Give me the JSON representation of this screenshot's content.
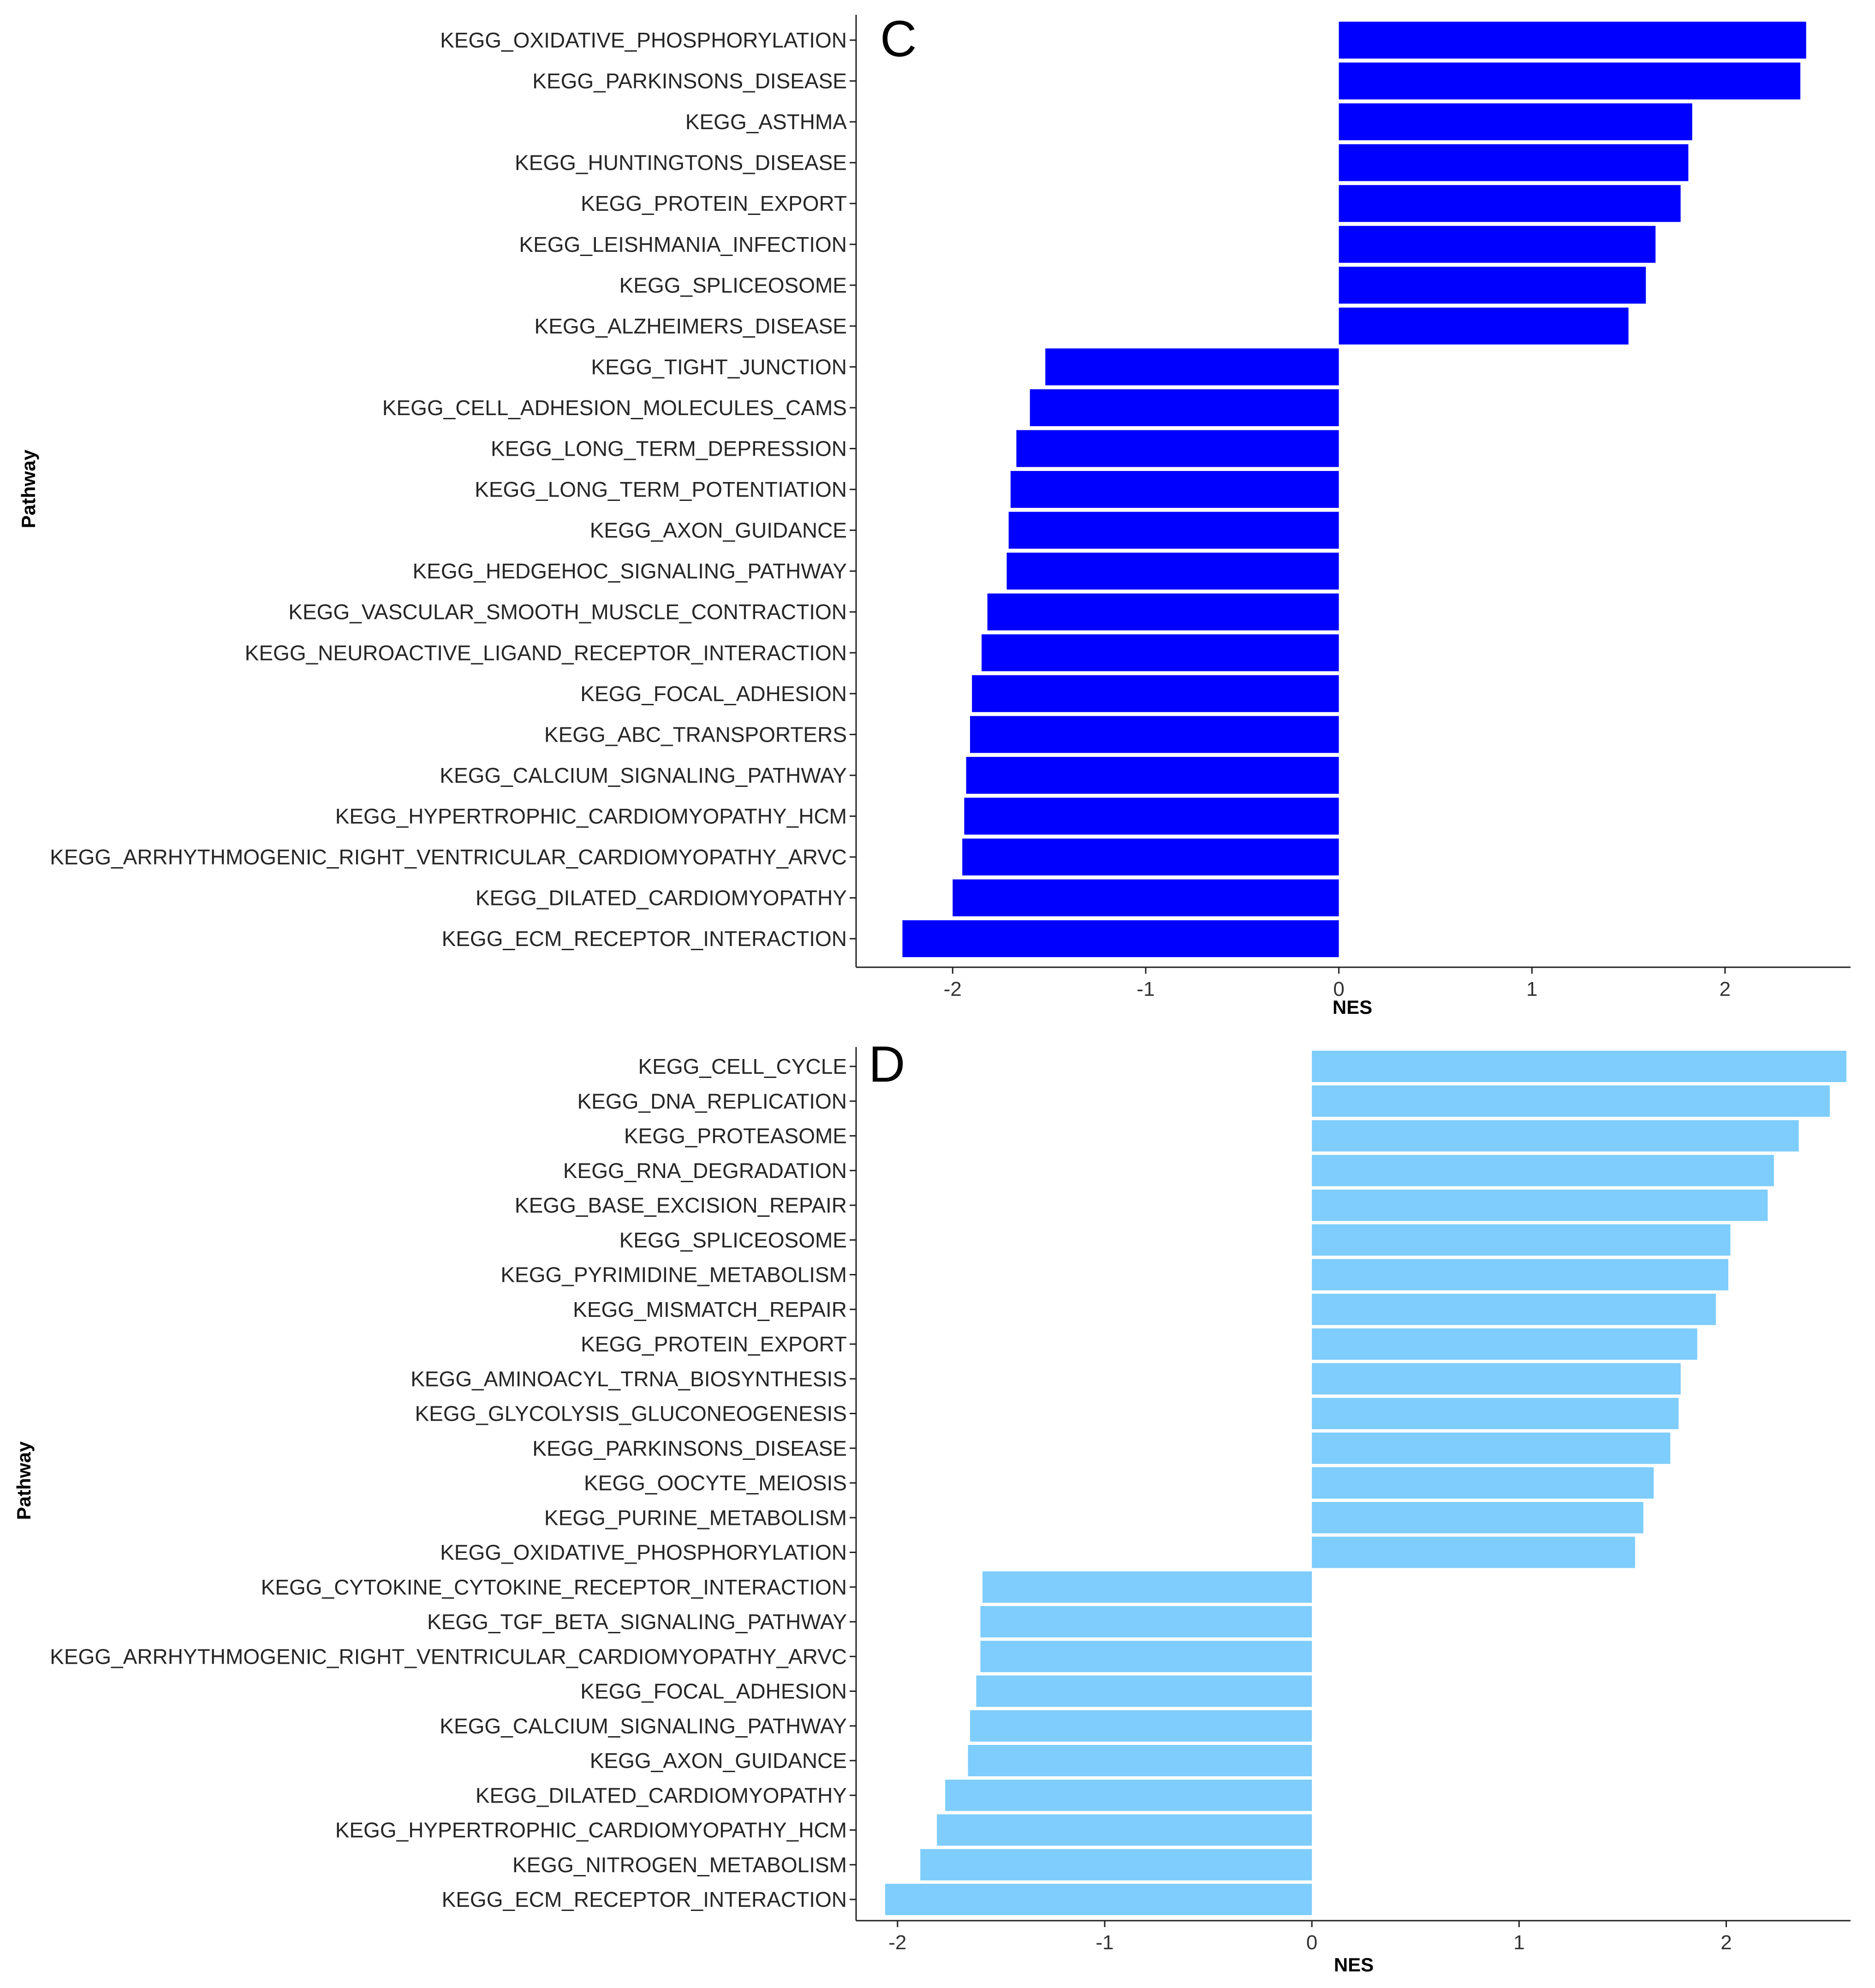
{
  "chart_data": [
    {
      "type": "bar",
      "orientation": "horizontal",
      "panel": "C",
      "xlabel": "NES",
      "ylabel": "Pathway",
      "xlim": [
        -2.5,
        2.65
      ],
      "xticks": [
        -2,
        -1,
        0,
        1,
        2
      ],
      "xtick_labels": [
        "-2",
        "-1",
        "0",
        "1",
        "2"
      ],
      "bar_color": "#0000ff",
      "grid": false,
      "categories": [
        "KEGG_OXIDATIVE_PHOSPHORYLATION",
        "KEGG_PARKINSONS_DISEASE",
        "KEGG_ASTHMA",
        "KEGG_HUNTINGTONS_DISEASE",
        "KEGG_PROTEIN_EXPORT",
        "KEGG_LEISHMANIA_INFECTION",
        "KEGG_SPLICEOSOME",
        "KEGG_ALZHEIMERS_DISEASE",
        "KEGG_TIGHT_JUNCTION",
        "KEGG_CELL_ADHESION_MOLECULES_CAMS",
        "KEGG_LONG_TERM_DEPRESSION",
        "KEGG_LONG_TERM_POTENTIATION",
        "KEGG_AXON_GUIDANCE",
        "KEGG_HEDGEHOC_SIGNALING_PATHWAY",
        "KEGG_VASCULAR_SMOOTH_MUSCLE_CONTRACTION",
        "KEGG_NEUROACTIVE_LIGAND_RECEPTOR_INTERACTION",
        "KEGG_FOCAL_ADHESION",
        "KEGG_ABC_TRANSPORTERS",
        "KEGG_CALCIUM_SIGNALING_PATHWAY",
        "KEGG_HYPERTROPHIC_CARDIOMYOPATHY_HCM",
        "KEGG_ARRHYTHMOGENIC_RIGHT_VENTRICULAR_CARDIOMYOPATHY_ARVC",
        "KEGG_DILATED_CARDIOMYOPATHY",
        "KEGG_ECM_RECEPTOR_INTERACTION"
      ],
      "values": [
        2.42,
        2.39,
        1.83,
        1.81,
        1.77,
        1.64,
        1.59,
        1.5,
        -1.52,
        -1.6,
        -1.67,
        -1.7,
        -1.71,
        -1.72,
        -1.82,
        -1.85,
        -1.9,
        -1.91,
        -1.93,
        -1.94,
        -1.95,
        -2.0,
        -2.26
      ]
    },
    {
      "type": "bar",
      "orientation": "horizontal",
      "panel": "D",
      "xlabel": "NES",
      "ylabel": "Pathway",
      "xlim": [
        -2.2,
        2.6
      ],
      "xticks": [
        -2,
        -1,
        0,
        1,
        2
      ],
      "xtick_labels": [
        "-2",
        "-1",
        "0",
        "1",
        "2"
      ],
      "bar_color": "#7ecdfc",
      "grid": false,
      "categories": [
        "KEGG_CELL_CYCLE",
        "KEGG_DNA_REPLICATION",
        "KEGG_PROTEASOME",
        "KEGG_RNA_DEGRADATION",
        "KEGG_BASE_EXCISION_REPAIR",
        "KEGG_SPLICEOSOME",
        "KEGG_PYRIMIDINE_METABOLISM",
        "KEGG_MISMATCH_REPAIR",
        "KEGG_PROTEIN_EXPORT",
        "KEGG_AMINOACYL_TRNA_BIOSYNTHESIS",
        "KEGG_GLYCOLYSIS_GLUCONEOGENESIS",
        "KEGG_PARKINSONS_DISEASE",
        "KEGG_OOCYTE_MEIOSIS",
        "KEGG_PURINE_METABOLISM",
        "KEGG_OXIDATIVE_PHOSPHORYLATION",
        "KEGG_CYTOKINE_CYTOKINE_RECEPTOR_INTERACTION",
        "KEGG_TGF_BETA_SIGNALING_PATHWAY",
        "KEGG_ARRHYTHMOGENIC_RIGHT_VENTRICULAR_CARDIOMYOPATHY_ARVC",
        "KEGG_FOCAL_ADHESION",
        "KEGG_CALCIUM_SIGNALING_PATHWAY",
        "KEGG_AXON_GUIDANCE",
        "KEGG_DILATED_CARDIOMYOPATHY",
        "KEGG_HYPERTROPHIC_CARDIOMYOPATHY_HCM",
        "KEGG_NITROGEN_METABOLISM",
        "KEGG_ECM_RECEPTOR_INTERACTION"
      ],
      "values": [
        2.58,
        2.5,
        2.35,
        2.23,
        2.2,
        2.02,
        2.01,
        1.95,
        1.86,
        1.78,
        1.77,
        1.73,
        1.65,
        1.6,
        1.56,
        -1.59,
        -1.6,
        -1.6,
        -1.62,
        -1.65,
        -1.66,
        -1.77,
        -1.81,
        -1.89,
        -2.06
      ]
    }
  ]
}
